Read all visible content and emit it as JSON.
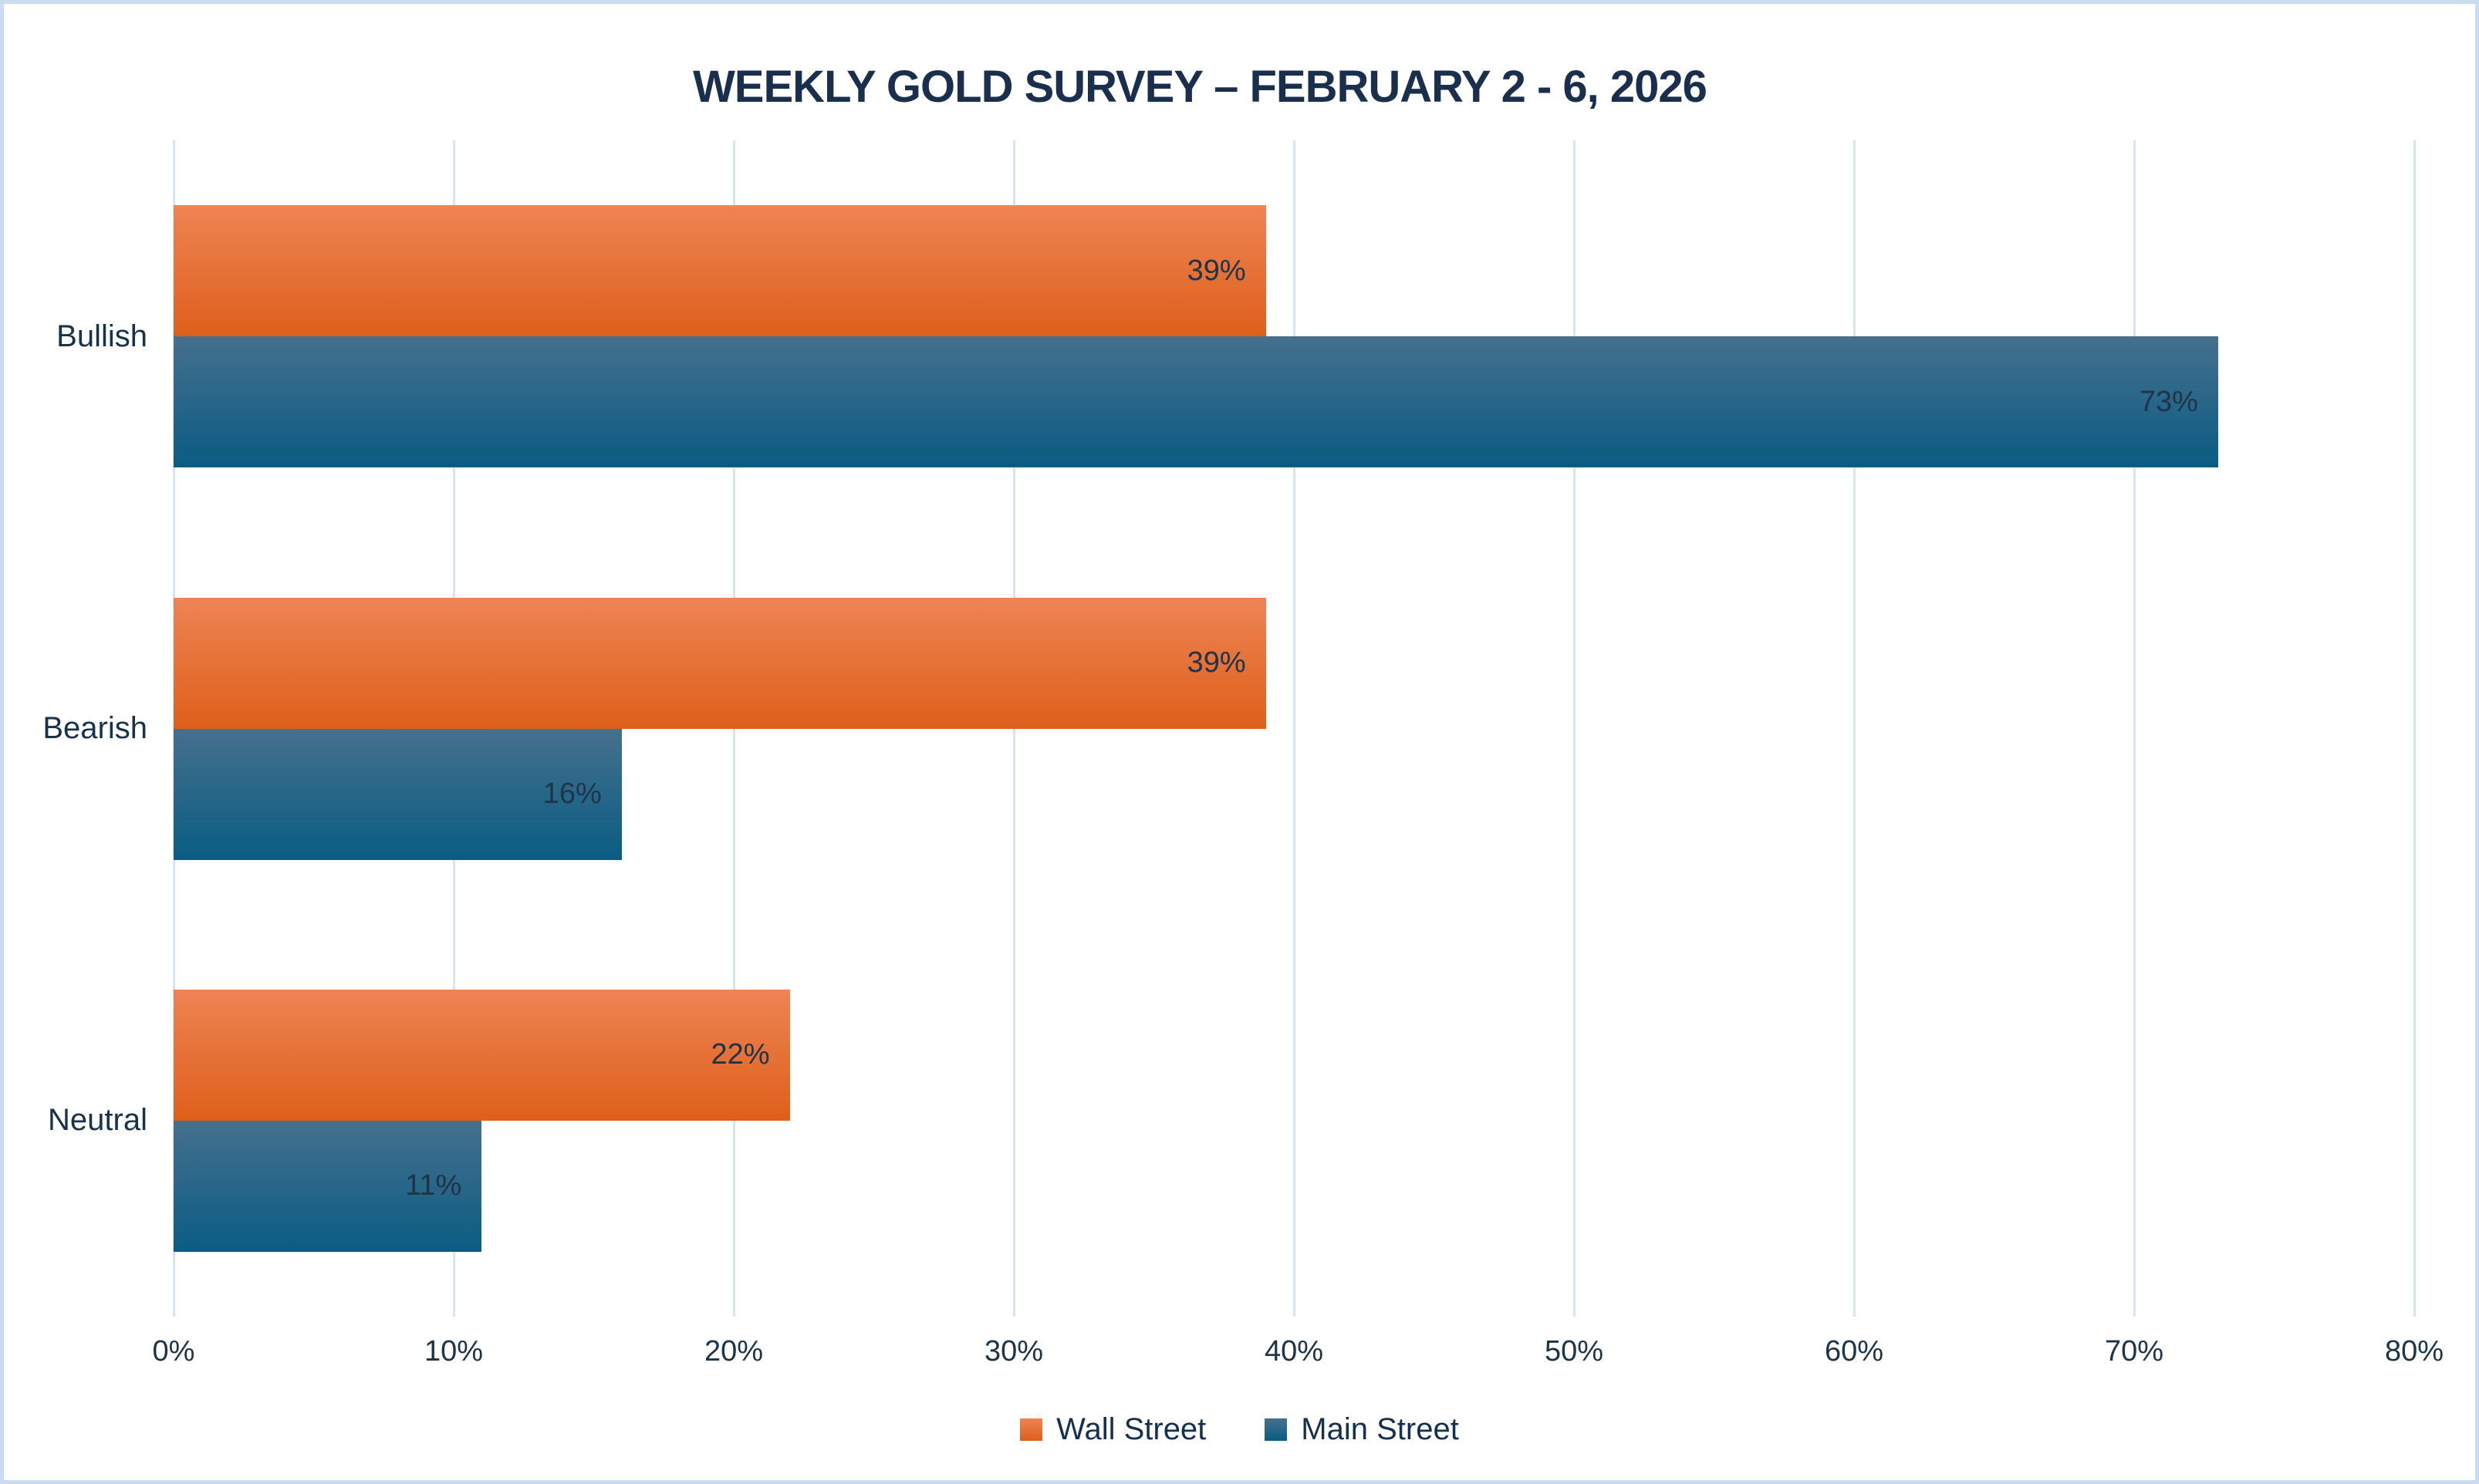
{
  "window": {
    "background": "#ffffff",
    "border_color": "#c9dcf3"
  },
  "chart_data": {
    "type": "bar",
    "orientation": "horizontal",
    "title": "WEEKLY GOLD SURVEY – FEBRUARY 2 - 6, 2026",
    "categories": [
      "Bullish",
      "Bearish",
      "Neutral"
    ],
    "series": [
      {
        "name": "Wall Street",
        "values": [
          39,
          39,
          22
        ],
        "gradient_top": "#ee8454",
        "gradient_bottom": "#de5f1a"
      },
      {
        "name": "Main Street",
        "values": [
          73,
          16,
          11
        ],
        "gradient_top": "#45708d",
        "gradient_bottom": "#0a5c83"
      }
    ],
    "value_suffix": "%",
    "data_label_position": "inside-end",
    "xlim": [
      0,
      80
    ],
    "x_tick_step": 10,
    "x_tick_labels": [
      "0%",
      "10%",
      "20%",
      "30%",
      "40%",
      "50%",
      "60%",
      "70%",
      "80%"
    ],
    "grid": "vertical-only",
    "legend_position": "bottom-center",
    "theme": {
      "gridline_color": "#d6e4f4",
      "title_color": "#1a2f4d",
      "category_text_color": "#16324c",
      "axis_text_color": "#1c3447",
      "value_text_color": "#203449",
      "legend_text_color": "#14304e"
    }
  }
}
